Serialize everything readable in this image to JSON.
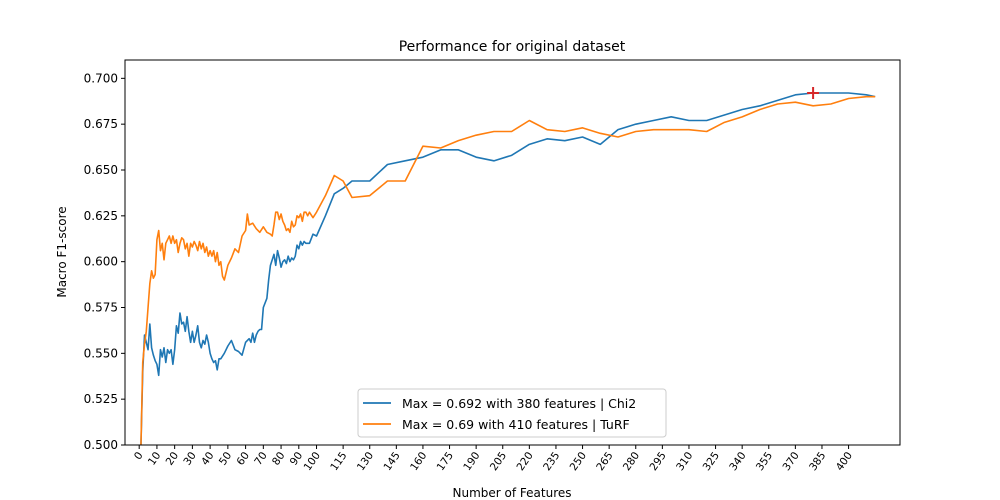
{
  "chart_data": {
    "type": "line",
    "title": "Performance for original dataset",
    "xlabel": "Number of Features",
    "ylabel": "Macro F1-score",
    "xlim": [
      -8,
      429
    ],
    "ylim": [
      0.5,
      0.71
    ],
    "x_ticks": [
      0,
      10,
      20,
      30,
      40,
      50,
      60,
      70,
      80,
      90,
      100,
      115,
      130,
      145,
      160,
      175,
      190,
      205,
      220,
      235,
      250,
      265,
      280,
      295,
      310,
      325,
      340,
      355,
      370,
      385,
      400
    ],
    "y_ticks": [
      0.5,
      0.525,
      0.55,
      0.575,
      0.6,
      0.625,
      0.65,
      0.675,
      0.7
    ],
    "y_tick_labels": [
      "0.500",
      "0.525",
      "0.550",
      "0.575",
      "0.600",
      "0.625",
      "0.650",
      "0.675",
      "0.700"
    ],
    "grid": false,
    "legend": "lower-center",
    "series": [
      {
        "name": "Max = 0.692 with 380 features | Chi2",
        "color": "#1f77b4",
        "points": [
          [
            1,
            0.5
          ],
          [
            2,
            0.54
          ],
          [
            3,
            0.56
          ],
          [
            4,
            0.556
          ],
          [
            5,
            0.552
          ],
          [
            6,
            0.566
          ],
          [
            7,
            0.553
          ],
          [
            8,
            0.549
          ],
          [
            9,
            0.546
          ],
          [
            10,
            0.544
          ],
          [
            11,
            0.538
          ],
          [
            12,
            0.552
          ],
          [
            13,
            0.548
          ],
          [
            14,
            0.553
          ],
          [
            15,
            0.545
          ],
          [
            16,
            0.552
          ],
          [
            17,
            0.55
          ],
          [
            18,
            0.552
          ],
          [
            19,
            0.544
          ],
          [
            20,
            0.552
          ],
          [
            21,
            0.565
          ],
          [
            22,
            0.561
          ],
          [
            23,
            0.572
          ],
          [
            24,
            0.566
          ],
          [
            25,
            0.567
          ],
          [
            26,
            0.562
          ],
          [
            27,
            0.57
          ],
          [
            28,
            0.562
          ],
          [
            29,
            0.556
          ],
          [
            30,
            0.562
          ],
          [
            31,
            0.556
          ],
          [
            32,
            0.56
          ],
          [
            33,
            0.565
          ],
          [
            34,
            0.556
          ],
          [
            35,
            0.553
          ],
          [
            36,
            0.557
          ],
          [
            37,
            0.555
          ],
          [
            38,
            0.56
          ],
          [
            39,
            0.556
          ],
          [
            40,
            0.55
          ],
          [
            41,
            0.547
          ],
          [
            42,
            0.545
          ],
          [
            43,
            0.546
          ],
          [
            44,
            0.541
          ],
          [
            45,
            0.547
          ],
          [
            46,
            0.547
          ],
          [
            48,
            0.55
          ],
          [
            50,
            0.554
          ],
          [
            52,
            0.557
          ],
          [
            54,
            0.552
          ],
          [
            56,
            0.551
          ],
          [
            58,
            0.549
          ],
          [
            60,
            0.556
          ],
          [
            62,
            0.558
          ],
          [
            63,
            0.556
          ],
          [
            64,
            0.561
          ],
          [
            65,
            0.556
          ],
          [
            66,
            0.56
          ],
          [
            67,
            0.562
          ],
          [
            68,
            0.563
          ],
          [
            69,
            0.563
          ],
          [
            70,
            0.575
          ],
          [
            72,
            0.58
          ],
          [
            73,
            0.59
          ],
          [
            74,
            0.598
          ],
          [
            75,
            0.601
          ],
          [
            76,
            0.604
          ],
          [
            77,
            0.598
          ],
          [
            78,
            0.606
          ],
          [
            79,
            0.602
          ],
          [
            80,
            0.597
          ],
          [
            81,
            0.6
          ],
          [
            82,
            0.601
          ],
          [
            83,
            0.599
          ],
          [
            84,
            0.603
          ],
          [
            85,
            0.6
          ],
          [
            86,
            0.602
          ],
          [
            87,
            0.601
          ],
          [
            88,
            0.603
          ],
          [
            89,
            0.609
          ],
          [
            90,
            0.607
          ],
          [
            91,
            0.611
          ],
          [
            92,
            0.609
          ],
          [
            93,
            0.611
          ],
          [
            94,
            0.61
          ],
          [
            96,
            0.61
          ],
          [
            98,
            0.615
          ],
          [
            100,
            0.614
          ],
          [
            105,
            0.625
          ],
          [
            110,
            0.637
          ],
          [
            115,
            0.64
          ],
          [
            120,
            0.644
          ],
          [
            130,
            0.644
          ],
          [
            140,
            0.653
          ],
          [
            150,
            0.655
          ],
          [
            160,
            0.657
          ],
          [
            170,
            0.661
          ],
          [
            180,
            0.661
          ],
          [
            190,
            0.657
          ],
          [
            200,
            0.655
          ],
          [
            210,
            0.658
          ],
          [
            220,
            0.664
          ],
          [
            230,
            0.667
          ],
          [
            240,
            0.666
          ],
          [
            250,
            0.668
          ],
          [
            260,
            0.664
          ],
          [
            270,
            0.672
          ],
          [
            280,
            0.675
          ],
          [
            290,
            0.677
          ],
          [
            300,
            0.679
          ],
          [
            310,
            0.677
          ],
          [
            320,
            0.677
          ],
          [
            330,
            0.68
          ],
          [
            340,
            0.683
          ],
          [
            350,
            0.685
          ],
          [
            360,
            0.688
          ],
          [
            370,
            0.691
          ],
          [
            380,
            0.692
          ],
          [
            390,
            0.692
          ],
          [
            400,
            0.692
          ],
          [
            410,
            0.691
          ],
          [
            415,
            0.69
          ]
        ]
      },
      {
        "name": "Max = 0.69 with 410 features | TuRF",
        "color": "#ff7f0e",
        "points": [
          [
            1,
            0.5
          ],
          [
            2,
            0.545
          ],
          [
            3,
            0.555
          ],
          [
            4,
            0.562
          ],
          [
            5,
            0.575
          ],
          [
            6,
            0.588
          ],
          [
            7,
            0.595
          ],
          [
            8,
            0.591
          ],
          [
            9,
            0.593
          ],
          [
            10,
            0.612
          ],
          [
            11,
            0.617
          ],
          [
            12,
            0.606
          ],
          [
            13,
            0.61
          ],
          [
            14,
            0.601
          ],
          [
            15,
            0.61
          ],
          [
            16,
            0.612
          ],
          [
            17,
            0.614
          ],
          [
            18,
            0.61
          ],
          [
            19,
            0.614
          ],
          [
            20,
            0.61
          ],
          [
            21,
            0.612
          ],
          [
            22,
            0.605
          ],
          [
            23,
            0.61
          ],
          [
            24,
            0.613
          ],
          [
            25,
            0.612
          ],
          [
            26,
            0.607
          ],
          [
            27,
            0.61
          ],
          [
            28,
            0.603
          ],
          [
            29,
            0.61
          ],
          [
            30,
            0.608
          ],
          [
            31,
            0.611
          ],
          [
            32,
            0.609
          ],
          [
            33,
            0.606
          ],
          [
            34,
            0.611
          ],
          [
            35,
            0.607
          ],
          [
            36,
            0.61
          ],
          [
            37,
            0.605
          ],
          [
            38,
            0.608
          ],
          [
            39,
            0.603
          ],
          [
            40,
            0.606
          ],
          [
            41,
            0.603
          ],
          [
            42,
            0.606
          ],
          [
            43,
            0.6
          ],
          [
            44,
            0.605
          ],
          [
            45,
            0.598
          ],
          [
            46,
            0.6
          ],
          [
            47,
            0.592
          ],
          [
            48,
            0.59
          ],
          [
            49,
            0.594
          ],
          [
            50,
            0.598
          ],
          [
            52,
            0.602
          ],
          [
            54,
            0.607
          ],
          [
            56,
            0.605
          ],
          [
            58,
            0.614
          ],
          [
            60,
            0.617
          ],
          [
            61,
            0.626
          ],
          [
            62,
            0.62
          ],
          [
            64,
            0.621
          ],
          [
            66,
            0.618
          ],
          [
            68,
            0.616
          ],
          [
            70,
            0.619
          ],
          [
            72,
            0.616
          ],
          [
            74,
            0.615
          ],
          [
            75,
            0.614
          ],
          [
            76,
            0.62
          ],
          [
            77,
            0.627
          ],
          [
            78,
            0.627
          ],
          [
            79,
            0.623
          ],
          [
            80,
            0.626
          ],
          [
            81,
            0.622
          ],
          [
            82,
            0.62
          ],
          [
            83,
            0.617
          ],
          [
            84,
            0.618
          ],
          [
            85,
            0.616
          ],
          [
            86,
            0.622
          ],
          [
            87,
            0.619
          ],
          [
            88,
            0.62
          ],
          [
            89,
            0.625
          ],
          [
            90,
            0.624
          ],
          [
            91,
            0.626
          ],
          [
            92,
            0.622
          ],
          [
            93,
            0.627
          ],
          [
            94,
            0.627
          ],
          [
            95,
            0.625
          ],
          [
            96,
            0.627
          ],
          [
            98,
            0.624
          ],
          [
            100,
            0.627
          ],
          [
            105,
            0.636
          ],
          [
            110,
            0.647
          ],
          [
            115,
            0.644
          ],
          [
            120,
            0.635
          ],
          [
            130,
            0.636
          ],
          [
            140,
            0.644
          ],
          [
            150,
            0.644
          ],
          [
            160,
            0.663
          ],
          [
            170,
            0.662
          ],
          [
            180,
            0.666
          ],
          [
            190,
            0.669
          ],
          [
            200,
            0.671
          ],
          [
            210,
            0.671
          ],
          [
            220,
            0.677
          ],
          [
            230,
            0.672
          ],
          [
            240,
            0.671
          ],
          [
            250,
            0.673
          ],
          [
            260,
            0.67
          ],
          [
            270,
            0.668
          ],
          [
            280,
            0.671
          ],
          [
            290,
            0.672
          ],
          [
            300,
            0.672
          ],
          [
            310,
            0.672
          ],
          [
            320,
            0.671
          ],
          [
            330,
            0.676
          ],
          [
            340,
            0.679
          ],
          [
            350,
            0.683
          ],
          [
            360,
            0.686
          ],
          [
            370,
            0.687
          ],
          [
            380,
            0.685
          ],
          [
            390,
            0.686
          ],
          [
            400,
            0.689
          ],
          [
            410,
            0.69
          ],
          [
            415,
            0.69
          ]
        ]
      }
    ],
    "marker": {
      "x": 380,
      "y": 0.692,
      "symbol": "+",
      "color": "#d62728"
    }
  }
}
